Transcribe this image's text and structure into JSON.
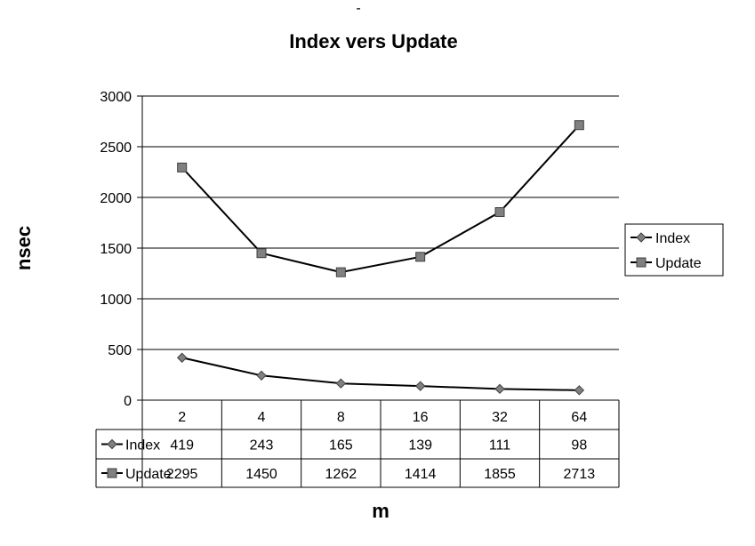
{
  "chart_data": {
    "type": "line",
    "top_mark": "-",
    "title": "Index vers Update",
    "xlabel": "m",
    "ylabel": "nsec",
    "ylim": [
      0,
      3000
    ],
    "yticks": [
      0,
      500,
      1000,
      1500,
      2000,
      2500,
      3000
    ],
    "ytick_labels": [
      "0",
      "500",
      "1000",
      "1500",
      "2000",
      "2500",
      "3000"
    ],
    "grid": true,
    "legend_position": "right",
    "categories": [
      "2",
      "4",
      "8",
      "16",
      "32",
      "64"
    ],
    "series": [
      {
        "name": "Index",
        "marker": "diamond",
        "values": [
          419,
          243,
          165,
          139,
          111,
          98
        ],
        "value_labels": [
          "419",
          "243",
          "165",
          "139",
          "111",
          "98"
        ]
      },
      {
        "name": "Update",
        "marker": "square",
        "values": [
          2295,
          1450,
          1262,
          1414,
          1855,
          2713
        ],
        "value_labels": [
          "2295",
          "1450",
          "1262",
          "1414",
          "1855",
          "2713"
        ]
      }
    ],
    "colors": {
      "line": "#000000",
      "marker_fill": "#808080",
      "grid": "#000000"
    }
  }
}
